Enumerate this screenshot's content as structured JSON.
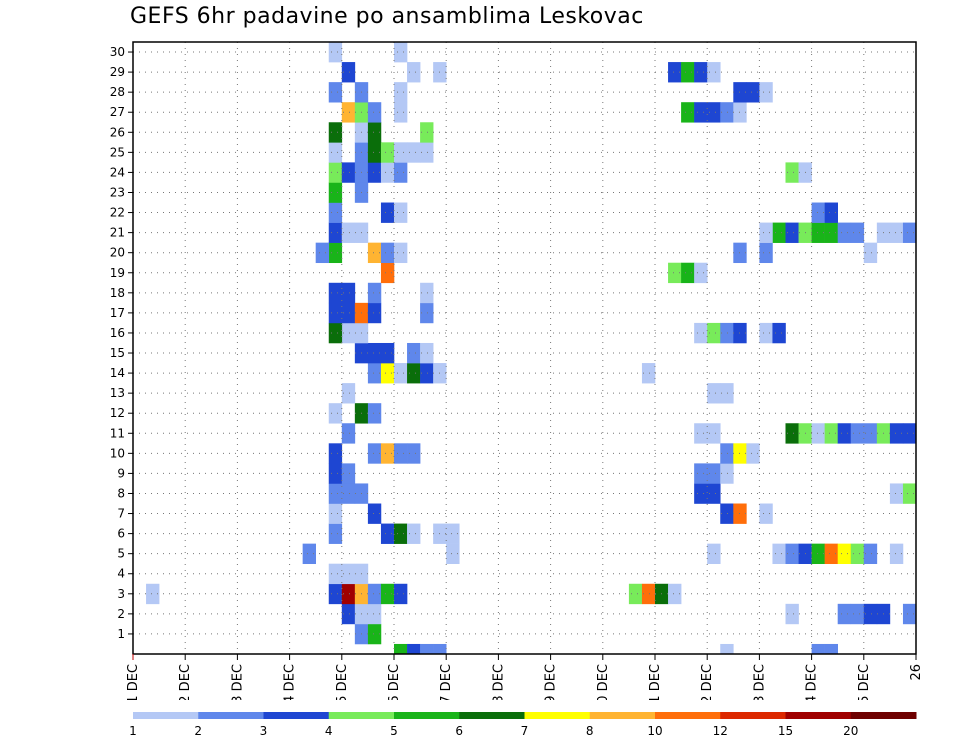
{
  "chart_data": {
    "type": "heatmap",
    "title": "GEFS 6hr padavine po ansamblima Leskovac",
    "x_tick_labels": [
      "11 DEC",
      "12 DEC",
      "13 DEC",
      "14 DEC",
      "15 DEC",
      "16 DEC",
      "17 DEC",
      "18 DEC",
      "19 DEC",
      "20 DEC",
      "21 DEC",
      "22 DEC",
      "23 DEC",
      "24 DEC",
      "25 DEC",
      "26"
    ],
    "x_range_days": [
      11,
      26
    ],
    "y_tick_labels": [
      "1",
      "2",
      "3",
      "4",
      "5",
      "6",
      "7",
      "8",
      "9",
      "10",
      "11",
      "12",
      "13",
      "14",
      "15",
      "16",
      "17",
      "18",
      "19",
      "20",
      "21",
      "22",
      "23",
      "24",
      "25",
      "26",
      "27",
      "28",
      "29",
      "30"
    ],
    "y_range": [
      0,
      30
    ],
    "time_step_hours": 6,
    "grid": "dotted",
    "legend_levels": [
      "1",
      "2",
      "3",
      "4",
      "5",
      "6",
      "7",
      "8",
      "10",
      "12",
      "15",
      "20"
    ],
    "legend_colors": [
      "#b4c8f5",
      "#5f87eb",
      "#1e46d2",
      "#78eb5a",
      "#19b419",
      "#0a6e0a",
      "#ffff00",
      "#ffb432",
      "#ff6e0a",
      "#dc2800",
      "#a00000",
      "#6e0000"
    ],
    "cells": [
      {
        "m": 0,
        "d": 16.0,
        "c": 4
      },
      {
        "m": 0,
        "d": 16.25,
        "c": 2
      },
      {
        "m": 0,
        "d": 16.5,
        "c": 1
      },
      {
        "m": 0,
        "d": 16.75,
        "c": 1
      },
      {
        "m": 0,
        "d": 22.25,
        "c": 0
      },
      {
        "m": 0,
        "d": 24.0,
        "c": 1
      },
      {
        "m": 0,
        "d": 24.25,
        "c": 1
      },
      {
        "m": 0,
        "d": 26.0,
        "c": 2
      },
      {
        "m": 1,
        "d": 15.25,
        "c": 1
      },
      {
        "m": 1,
        "d": 15.5,
        "c": 4
      },
      {
        "m": 2,
        "d": 15.0,
        "c": 2
      },
      {
        "m": 2,
        "d": 15.25,
        "c": 0
      },
      {
        "m": 2,
        "d": 15.5,
        "c": 0
      },
      {
        "m": 2,
        "d": 23.5,
        "c": 0
      },
      {
        "m": 2,
        "d": 24.5,
        "c": 1
      },
      {
        "m": 2,
        "d": 24.75,
        "c": 1
      },
      {
        "m": 2,
        "d": 25.0,
        "c": 2
      },
      {
        "m": 2,
        "d": 25.25,
        "c": 2
      },
      {
        "m": 2,
        "d": 25.75,
        "c": 1
      },
      {
        "m": 3,
        "d": 11.25,
        "c": 0
      },
      {
        "m": 3,
        "d": 14.75,
        "c": 2
      },
      {
        "m": 3,
        "d": 15.0,
        "c": 10
      },
      {
        "m": 3,
        "d": 15.25,
        "c": 7
      },
      {
        "m": 3,
        "d": 15.5,
        "c": 1
      },
      {
        "m": 3,
        "d": 15.75,
        "c": 4
      },
      {
        "m": 3,
        "d": 16.0,
        "c": 2
      },
      {
        "m": 3,
        "d": 20.5,
        "c": 3
      },
      {
        "m": 3,
        "d": 20.75,
        "c": 8
      },
      {
        "m": 3,
        "d": 21.0,
        "c": 5
      },
      {
        "m": 3,
        "d": 21.25,
        "c": 0
      },
      {
        "m": 4,
        "d": 14.75,
        "c": 0
      },
      {
        "m": 4,
        "d": 15.0,
        "c": 0
      },
      {
        "m": 4,
        "d": 15.25,
        "c": 0
      },
      {
        "m": 5,
        "d": 14.25,
        "c": 1
      },
      {
        "m": 5,
        "d": 17.0,
        "c": 0
      },
      {
        "m": 5,
        "d": 22.0,
        "c": 0
      },
      {
        "m": 5,
        "d": 23.25,
        "c": 0
      },
      {
        "m": 5,
        "d": 23.5,
        "c": 1
      },
      {
        "m": 5,
        "d": 23.75,
        "c": 2
      },
      {
        "m": 5,
        "d": 24.0,
        "c": 4
      },
      {
        "m": 5,
        "d": 24.25,
        "c": 8
      },
      {
        "m": 5,
        "d": 24.5,
        "c": 6
      },
      {
        "m": 5,
        "d": 24.75,
        "c": 3
      },
      {
        "m": 5,
        "d": 25.0,
        "c": 1
      },
      {
        "m": 5,
        "d": 25.5,
        "c": 0
      },
      {
        "m": 6,
        "d": 14.75,
        "c": 1
      },
      {
        "m": 6,
        "d": 15.75,
        "c": 2
      },
      {
        "m": 6,
        "d": 16.0,
        "c": 5
      },
      {
        "m": 6,
        "d": 16.25,
        "c": 0
      },
      {
        "m": 6,
        "d": 16.75,
        "c": 0
      },
      {
        "m": 6,
        "d": 17.0,
        "c": 0
      },
      {
        "m": 7,
        "d": 14.75,
        "c": 0
      },
      {
        "m": 7,
        "d": 15.5,
        "c": 2
      },
      {
        "m": 7,
        "d": 22.25,
        "c": 2
      },
      {
        "m": 7,
        "d": 22.5,
        "c": 8
      },
      {
        "m": 7,
        "d": 23.0,
        "c": 0
      },
      {
        "m": 8,
        "d": 14.75,
        "c": 1
      },
      {
        "m": 8,
        "d": 15.0,
        "c": 1
      },
      {
        "m": 8,
        "d": 15.25,
        "c": 1
      },
      {
        "m": 8,
        "d": 21.75,
        "c": 2
      },
      {
        "m": 8,
        "d": 22.0,
        "c": 2
      },
      {
        "m": 8,
        "d": 25.5,
        "c": 0
      },
      {
        "m": 8,
        "d": 25.75,
        "c": 3
      },
      {
        "m": 9,
        "d": 14.75,
        "c": 2
      },
      {
        "m": 9,
        "d": 15.0,
        "c": 1
      },
      {
        "m": 9,
        "d": 21.75,
        "c": 1
      },
      {
        "m": 9,
        "d": 22.0,
        "c": 1
      },
      {
        "m": 9,
        "d": 22.25,
        "c": 0
      },
      {
        "m": 10,
        "d": 14.75,
        "c": 2
      },
      {
        "m": 10,
        "d": 15.5,
        "c": 1
      },
      {
        "m": 10,
        "d": 15.75,
        "c": 7
      },
      {
        "m": 10,
        "d": 16.0,
        "c": 1
      },
      {
        "m": 10,
        "d": 16.25,
        "c": 1
      },
      {
        "m": 10,
        "d": 22.25,
        "c": 1
      },
      {
        "m": 10,
        "d": 22.5,
        "c": 6
      },
      {
        "m": 10,
        "d": 22.75,
        "c": 0
      },
      {
        "m": 11,
        "d": 15.0,
        "c": 1
      },
      {
        "m": 11,
        "d": 21.75,
        "c": 0
      },
      {
        "m": 11,
        "d": 22.0,
        "c": 0
      },
      {
        "m": 11,
        "d": 23.5,
        "c": 5
      },
      {
        "m": 11,
        "d": 23.75,
        "c": 3
      },
      {
        "m": 11,
        "d": 24.0,
        "c": 0
      },
      {
        "m": 11,
        "d": 24.25,
        "c": 3
      },
      {
        "m": 11,
        "d": 24.5,
        "c": 2
      },
      {
        "m": 11,
        "d": 24.75,
        "c": 1
      },
      {
        "m": 11,
        "d": 25.0,
        "c": 1
      },
      {
        "m": 11,
        "d": 25.25,
        "c": 3
      },
      {
        "m": 11,
        "d": 25.5,
        "c": 2
      },
      {
        "m": 11,
        "d": 25.75,
        "c": 2
      },
      {
        "m": 12,
        "d": 14.75,
        "c": 0
      },
      {
        "m": 12,
        "d": 15.25,
        "c": 5
      },
      {
        "m": 12,
        "d": 15.5,
        "c": 1
      },
      {
        "m": 12,
        "d": 26.0,
        "c": 0
      },
      {
        "m": 13,
        "d": 15.0,
        "c": 0
      },
      {
        "m": 13,
        "d": 22.0,
        "c": 0
      },
      {
        "m": 13,
        "d": 22.25,
        "c": 0
      },
      {
        "m": 14,
        "d": 15.5,
        "c": 1
      },
      {
        "m": 14,
        "d": 15.75,
        "c": 6
      },
      {
        "m": 14,
        "d": 16.0,
        "c": 0
      },
      {
        "m": 14,
        "d": 16.25,
        "c": 5
      },
      {
        "m": 14,
        "d": 16.5,
        "c": 2
      },
      {
        "m": 14,
        "d": 16.75,
        "c": 0
      },
      {
        "m": 14,
        "d": 20.75,
        "c": 0
      },
      {
        "m": 15,
        "d": 15.25,
        "c": 2
      },
      {
        "m": 15,
        "d": 15.5,
        "c": 2
      },
      {
        "m": 15,
        "d": 15.75,
        "c": 2
      },
      {
        "m": 15,
        "d": 16.25,
        "c": 1
      },
      {
        "m": 15,
        "d": 16.5,
        "c": 0
      },
      {
        "m": 16,
        "d": 15.0,
        "c": 0
      },
      {
        "m": 16,
        "d": 15.25,
        "c": 0
      },
      {
        "m": 16,
        "d": 14.75,
        "c": 5
      },
      {
        "m": 16,
        "d": 21.75,
        "c": 0
      },
      {
        "m": 16,
        "d": 22.0,
        "c": 3
      },
      {
        "m": 16,
        "d": 22.25,
        "c": 1
      },
      {
        "m": 16,
        "d": 22.5,
        "c": 2
      },
      {
        "m": 16,
        "d": 23.0,
        "c": 0
      },
      {
        "m": 16,
        "d": 23.25,
        "c": 2
      },
      {
        "m": 17,
        "d": 14.75,
        "c": 2
      },
      {
        "m": 17,
        "d": 15.0,
        "c": 2
      },
      {
        "m": 17,
        "d": 15.25,
        "c": 8
      },
      {
        "m": 17,
        "d": 15.5,
        "c": 2
      },
      {
        "m": 17,
        "d": 16.5,
        "c": 1
      },
      {
        "m": 18,
        "d": 14.75,
        "c": 2
      },
      {
        "m": 18,
        "d": 15.0,
        "c": 2
      },
      {
        "m": 18,
        "d": 15.5,
        "c": 1
      },
      {
        "m": 18,
        "d": 16.5,
        "c": 0
      },
      {
        "m": 19,
        "d": 15.75,
        "c": 8
      },
      {
        "m": 19,
        "d": 21.25,
        "c": 3
      },
      {
        "m": 19,
        "d": 21.5,
        "c": 4
      },
      {
        "m": 19,
        "d": 21.75,
        "c": 0
      },
      {
        "m": 20,
        "d": 14.75,
        "c": 4
      },
      {
        "m": 20,
        "d": 15.5,
        "c": 7
      },
      {
        "m": 20,
        "d": 15.75,
        "c": 1
      },
      {
        "m": 20,
        "d": 16.0,
        "c": 0
      },
      {
        "m": 20,
        "d": 14.5,
        "c": 1
      },
      {
        "m": 20,
        "d": 22.5,
        "c": 1
      },
      {
        "m": 20,
        "d": 23.0,
        "c": 1
      },
      {
        "m": 20,
        "d": 25.0,
        "c": 0
      },
      {
        "m": 21,
        "d": 14.75,
        "c": 2
      },
      {
        "m": 21,
        "d": 15.0,
        "c": 0
      },
      {
        "m": 21,
        "d": 15.25,
        "c": 0
      },
      {
        "m": 21,
        "d": 23.25,
        "c": 4
      },
      {
        "m": 21,
        "d": 23.5,
        "c": 2
      },
      {
        "m": 21,
        "d": 23.75,
        "c": 3
      },
      {
        "m": 21,
        "d": 24.0,
        "c": 4
      },
      {
        "m": 21,
        "d": 24.25,
        "c": 4
      },
      {
        "m": 21,
        "d": 24.5,
        "c": 1
      },
      {
        "m": 21,
        "d": 24.75,
        "c": 1
      },
      {
        "m": 21,
        "d": 25.25,
        "c": 0
      },
      {
        "m": 21,
        "d": 25.5,
        "c": 0
      },
      {
        "m": 21,
        "d": 25.75,
        "c": 1
      },
      {
        "m": 21,
        "d": 23.0,
        "c": 0
      },
      {
        "m": 22,
        "d": 14.75,
        "c": 1
      },
      {
        "m": 22,
        "d": 15.75,
        "c": 2
      },
      {
        "m": 22,
        "d": 16.0,
        "c": 0
      },
      {
        "m": 22,
        "d": 24.0,
        "c": 1
      },
      {
        "m": 22,
        "d": 24.25,
        "c": 2
      },
      {
        "m": 23,
        "d": 14.75,
        "c": 4
      },
      {
        "m": 23,
        "d": 15.25,
        "c": 1
      },
      {
        "m": 24,
        "d": 14.75,
        "c": 3
      },
      {
        "m": 24,
        "d": 15.0,
        "c": 2
      },
      {
        "m": 24,
        "d": 15.25,
        "c": 1
      },
      {
        "m": 24,
        "d": 15.5,
        "c": 2
      },
      {
        "m": 24,
        "d": 15.75,
        "c": 0
      },
      {
        "m": 24,
        "d": 16.0,
        "c": 1
      },
      {
        "m": 24,
        "d": 23.5,
        "c": 3
      },
      {
        "m": 24,
        "d": 23.75,
        "c": 0
      },
      {
        "m": 24,
        "d": 26.0,
        "c": 5
      },
      {
        "m": 25,
        "d": 14.75,
        "c": 0
      },
      {
        "m": 25,
        "d": 15.25,
        "c": 1
      },
      {
        "m": 25,
        "d": 15.5,
        "c": 5
      },
      {
        "m": 25,
        "d": 15.75,
        "c": 3
      },
      {
        "m": 25,
        "d": 16.0,
        "c": 0
      },
      {
        "m": 25,
        "d": 16.25,
        "c": 0
      },
      {
        "m": 25,
        "d": 16.5,
        "c": 0
      },
      {
        "m": 26,
        "d": 14.75,
        "c": 5
      },
      {
        "m": 26,
        "d": 15.25,
        "c": 0
      },
      {
        "m": 26,
        "d": 15.5,
        "c": 5
      },
      {
        "m": 26,
        "d": 16.5,
        "c": 3
      },
      {
        "m": 27,
        "d": 15.0,
        "c": 7
      },
      {
        "m": 27,
        "d": 15.25,
        "c": 3
      },
      {
        "m": 27,
        "d": 15.5,
        "c": 1
      },
      {
        "m": 27,
        "d": 16.0,
        "c": 0
      },
      {
        "m": 27,
        "d": 21.5,
        "c": 4
      },
      {
        "m": 27,
        "d": 21.75,
        "c": 2
      },
      {
        "m": 27,
        "d": 22.0,
        "c": 2
      },
      {
        "m": 27,
        "d": 22.25,
        "c": 1
      },
      {
        "m": 27,
        "d": 22.5,
        "c": 0
      },
      {
        "m": 28,
        "d": 14.75,
        "c": 1
      },
      {
        "m": 28,
        "d": 15.25,
        "c": 1
      },
      {
        "m": 28,
        "d": 16.0,
        "c": 0
      },
      {
        "m": 28,
        "d": 22.5,
        "c": 2
      },
      {
        "m": 28,
        "d": 22.75,
        "c": 2
      },
      {
        "m": 28,
        "d": 23.0,
        "c": 0
      },
      {
        "m": 29,
        "d": 15.0,
        "c": 2
      },
      {
        "m": 29,
        "d": 16.25,
        "c": 0
      },
      {
        "m": 29,
        "d": 16.75,
        "c": 0
      },
      {
        "m": 29,
        "d": 21.25,
        "c": 2
      },
      {
        "m": 29,
        "d": 21.5,
        "c": 4
      },
      {
        "m": 29,
        "d": 21.75,
        "c": 2
      },
      {
        "m": 29,
        "d": 22.0,
        "c": 0
      },
      {
        "m": 30,
        "d": 14.75,
        "c": 0
      },
      {
        "m": 30,
        "d": 16.0,
        "c": 0
      }
    ]
  }
}
